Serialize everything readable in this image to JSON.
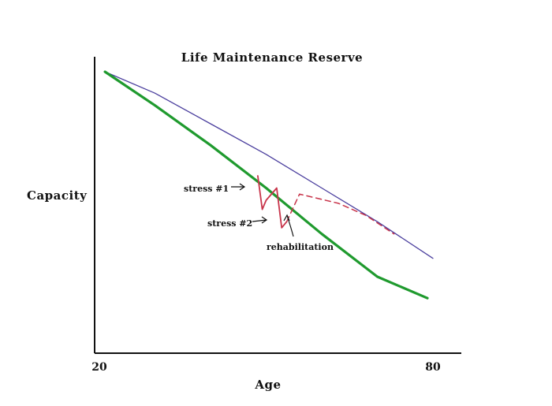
{
  "chart_data": {
    "type": "line",
    "title": "Life Maintenance Reserve",
    "xlabel": "Age",
    "ylabel": "Capacity",
    "xticks": [
      "20",
      "80"
    ],
    "xlim": [
      20,
      80
    ],
    "ylim": [
      0,
      100
    ],
    "grid": false,
    "legend": "none",
    "series": [
      {
        "color": "#4b3f9e",
        "style": "solid",
        "x": [
          21,
          30,
          40,
          50,
          60,
          70,
          80
        ],
        "y": [
          92,
          85,
          75,
          65,
          54,
          43,
          31
        ]
      },
      {
        "color": "#1f9a2e",
        "style": "solid",
        "x": [
          21,
          30,
          40,
          50,
          60,
          70,
          79
        ],
        "y": [
          92,
          81,
          68,
          54,
          39,
          25,
          18
        ]
      },
      {
        "color": "#c8344a",
        "style": "solid",
        "x": [
          48.5,
          49.3,
          50.0,
          51.9,
          52.8,
          53.7
        ],
        "y": [
          58,
          47,
          50,
          54,
          41,
          43
        ]
      },
      {
        "color": "#c8344a",
        "style": "dashed",
        "x": [
          53.7,
          56,
          63,
          68,
          73
        ],
        "y": [
          43,
          52,
          49,
          45,
          39
        ]
      }
    ],
    "annotations": [
      {
        "text": "stress #1",
        "x": 48.5,
        "y": 56
      },
      {
        "text": "stress #2",
        "x": 51.9,
        "y": 44
      },
      {
        "text": "rehabilitation",
        "x": 55,
        "y": 46
      }
    ]
  }
}
